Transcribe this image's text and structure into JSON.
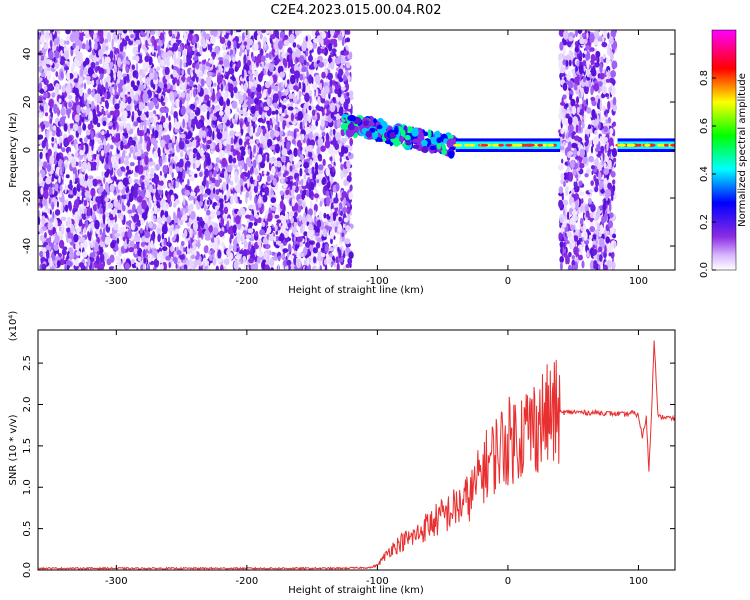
{
  "figure": {
    "title": "C2E4.2023.015.00.04.R02"
  },
  "colors": {
    "signal": "#e83030",
    "noise": "#7a2be8",
    "colormap": [
      "#ffffff",
      "#8a2be2",
      "#0000ff",
      "#00ffff",
      "#00ff00",
      "#ffff00",
      "#ff0000",
      "#ff00ff"
    ]
  },
  "chart_data": [
    {
      "type": "heatmap",
      "xlabel": "Height of straight line (km)",
      "ylabel": "Frequency (Hz)",
      "xlim": [
        -360,
        128
      ],
      "ylim": [
        -50,
        50
      ],
      "xticks": [
        -300,
        -200,
        -100,
        0,
        100
      ],
      "yticks": [
        -40,
        -20,
        0,
        20,
        40
      ],
      "colorbar": {
        "label": "Normalized spectral amplitude",
        "range": [
          0.0,
          1.0
        ],
        "ticks": [
          0.0,
          0.2,
          0.4,
          0.6,
          0.8
        ]
      },
      "regions": [
        {
          "x": [
            -360,
            -120
          ],
          "y": [
            -50,
            50
          ],
          "level": 0.15,
          "kind": "noise"
        },
        {
          "x": [
            40,
            82
          ],
          "y": [
            -50,
            50
          ],
          "level": 0.15,
          "kind": "noise"
        },
        {
          "x": [
            -125,
            -40
          ],
          "y": [
            -2,
            12
          ],
          "level": 0.4,
          "kind": "signal-spread"
        },
        {
          "x": [
            -40,
            40
          ],
          "y": [
            0,
            4
          ],
          "level": 0.8,
          "kind": "carrier"
        },
        {
          "x": [
            84,
            128
          ],
          "y": [
            0,
            4
          ],
          "level": 0.8,
          "kind": "carrier"
        }
      ]
    },
    {
      "type": "line",
      "xlabel": "Height of straight line (km)",
      "ylabel": "SNR (10 * v/v)",
      "y_multiplier": "(x10⁴)",
      "xlim": [
        -360,
        128
      ],
      "ylim": [
        0.0,
        2.9
      ],
      "xticks": [
        -300,
        -200,
        -100,
        0,
        100
      ],
      "yticks": [
        0.0,
        0.5,
        1.0,
        1.5,
        2.0,
        2.5
      ],
      "series": [
        {
          "x": [
            -360,
            -300,
            -200,
            -130,
            -105,
            -100,
            -95,
            -90,
            -85,
            -80,
            -75,
            -70,
            -65,
            -60,
            -55,
            -50,
            -45,
            -40,
            -35,
            -30,
            -25,
            -20,
            -15,
            -10,
            -5,
            0,
            5,
            10,
            15,
            20,
            25,
            30,
            35,
            40,
            50,
            60,
            70,
            80,
            90,
            95,
            100,
            103,
            106,
            108,
            110,
            112,
            115,
            120,
            128
          ],
          "y": [
            0.02,
            0.02,
            0.02,
            0.02,
            0.03,
            0.06,
            0.15,
            0.25,
            0.3,
            0.35,
            0.38,
            0.42,
            0.5,
            0.55,
            0.6,
            0.65,
            0.7,
            0.75,
            0.8,
            0.88,
            1.0,
            1.2,
            1.3,
            1.4,
            1.5,
            1.55,
            1.6,
            1.65,
            1.7,
            1.75,
            1.8,
            1.85,
            1.88,
            1.9,
            1.91,
            1.9,
            1.9,
            1.89,
            1.88,
            1.9,
            1.87,
            1.6,
            1.85,
            1.2,
            1.9,
            2.8,
            1.85,
            1.85,
            1.82
          ]
        }
      ]
    }
  ]
}
